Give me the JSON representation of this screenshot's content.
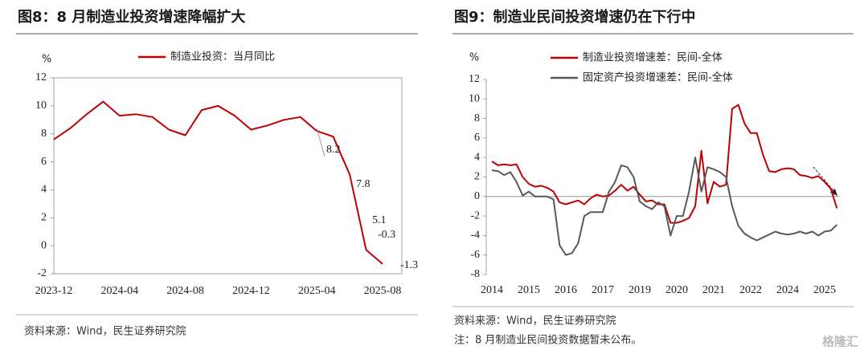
{
  "chart_data": [
    {
      "type": "line",
      "title": "图8：8 月制造业投资增速降幅扩大",
      "y_label": "%",
      "categories": [
        "2023-12",
        null,
        null,
        null,
        "2024-04",
        null,
        null,
        null,
        "2024-08",
        null,
        null,
        null,
        "2024-12",
        null,
        null,
        null,
        "2025-04",
        null,
        null,
        null,
        "2025-08"
      ],
      "series": [
        {
          "name": "制造业投资：当月同比",
          "color": "#c00000",
          "values": [
            7.6,
            8.4,
            9.4,
            10.3,
            9.3,
            9.4,
            9.2,
            8.3,
            7.9,
            9.7,
            10.0,
            9.3,
            8.3,
            8.6,
            9.0,
            9.2,
            8.2,
            7.8,
            5.1,
            -0.3,
            -1.3
          ],
          "value_labels": [
            null,
            null,
            null,
            null,
            null,
            null,
            null,
            null,
            null,
            null,
            null,
            null,
            null,
            null,
            null,
            null,
            "8.2",
            "7.8",
            "5.1",
            "-0.3",
            "-1.3"
          ]
        }
      ],
      "ylim": [
        -2,
        12
      ],
      "yticks": [
        -2,
        0,
        2,
        4,
        6,
        8,
        10,
        12
      ],
      "source": "资料来源：Wind，民生证券研究院"
    },
    {
      "type": "line",
      "title": "图9：制造业民间投资增速仍在下行中",
      "y_label": "%",
      "categories": [
        "2014",
        null,
        null,
        null,
        null,
        null,
        "2015",
        null,
        null,
        null,
        null,
        null,
        "2016",
        null,
        null,
        null,
        null,
        null,
        "2017",
        null,
        null,
        null,
        null,
        null,
        "2019",
        null,
        null,
        null,
        null,
        null,
        "2020",
        null,
        null,
        null,
        null,
        null,
        "2021",
        null,
        null,
        null,
        null,
        null,
        "2022",
        null,
        null,
        null,
        null,
        null,
        "2024",
        null,
        null,
        null,
        null,
        null,
        "2025",
        null,
        null
      ],
      "series": [
        {
          "name": "制造业投资增速差：民间-全体",
          "color": "#c00000",
          "values": [
            3.6,
            3.2,
            3.3,
            3.2,
            3.3,
            2.0,
            1.3,
            1.0,
            1.1,
            0.9,
            0.5,
            -0.6,
            -0.8,
            -0.6,
            -0.4,
            -0.8,
            -0.2,
            0.2,
            0.0,
            0.1,
            0.6,
            1.2,
            0.6,
            1.0,
            0.2,
            -0.5,
            -0.4,
            -0.8,
            -0.8,
            -2.7,
            -2.7,
            -2.5,
            -2.2,
            -1.0,
            4.7,
            -0.7,
            1.5,
            1.0,
            1.2,
            9.0,
            9.4,
            7.5,
            6.5,
            6.5,
            4.3,
            2.6,
            2.5,
            2.8,
            2.9,
            2.8,
            2.2,
            2.1,
            1.9,
            2.1,
            1.5,
            0.8,
            -1.2
          ]
        },
        {
          "name": "固定资产投资增速差：民间-全体",
          "color": "#595959",
          "values": [
            2.7,
            2.6,
            2.2,
            2.5,
            1.5,
            0.1,
            0.5,
            0.0,
            0.0,
            0.0,
            -0.3,
            -5.0,
            -6.0,
            -5.8,
            -4.8,
            -2.0,
            -1.6,
            -1.6,
            -1.6,
            0.5,
            1.5,
            3.2,
            3.0,
            2.0,
            -0.5,
            -1.0,
            -1.3,
            -0.6,
            -1.0,
            -4.0,
            -2.0,
            -2.0,
            0.5,
            4.0,
            0.5,
            3.0,
            2.8,
            2.5,
            2.0,
            -1.0,
            -3.0,
            -3.8,
            -4.2,
            -4.5,
            -4.2,
            -3.9,
            -3.6,
            -3.8,
            -3.9,
            -3.8,
            -3.6,
            -3.8,
            -3.6,
            -4.0,
            -3.6,
            -3.5,
            -2.9
          ]
        }
      ],
      "ylim": [
        -8,
        12
      ],
      "yticks": [
        -8,
        -6,
        -4,
        -2,
        0,
        2,
        4,
        6,
        8,
        10,
        12
      ],
      "source": "资料来源：Wind，民生证券研究院",
      "note": "注：8 月制造业民间投资数据暂未公布。"
    }
  ],
  "watermark": "格隆汇"
}
